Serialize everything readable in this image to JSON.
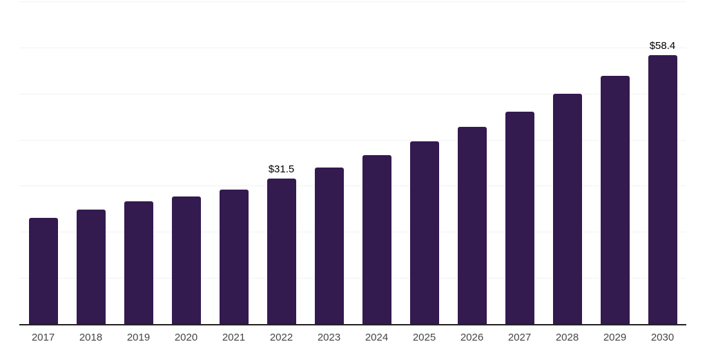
{
  "chart_data": {
    "type": "bar",
    "categories": [
      "2017",
      "2018",
      "2019",
      "2020",
      "2021",
      "2022",
      "2023",
      "2024",
      "2025",
      "2026",
      "2027",
      "2028",
      "2029",
      "2030"
    ],
    "values": [
      23.1,
      24.9,
      26.7,
      27.6,
      29.2,
      31.5,
      34.0,
      36.7,
      39.6,
      42.8,
      46.1,
      49.9,
      53.9,
      58.4
    ],
    "data_labels": {
      "2022": "$31.5",
      "2030": "$58.4"
    },
    "title": "",
    "xlabel": "",
    "ylabel": "",
    "ylim": [
      0,
      70
    ],
    "grid": true,
    "gridline_values": [
      70,
      60,
      50,
      40,
      30,
      20,
      10
    ],
    "legend": "none",
    "colors": {
      "bar": "#331a4f",
      "axis_line": "#222222",
      "gridline": "#f2f2f2",
      "data_label": "#000000",
      "tick_label": "#454545",
      "background": "#ffffff"
    }
  }
}
